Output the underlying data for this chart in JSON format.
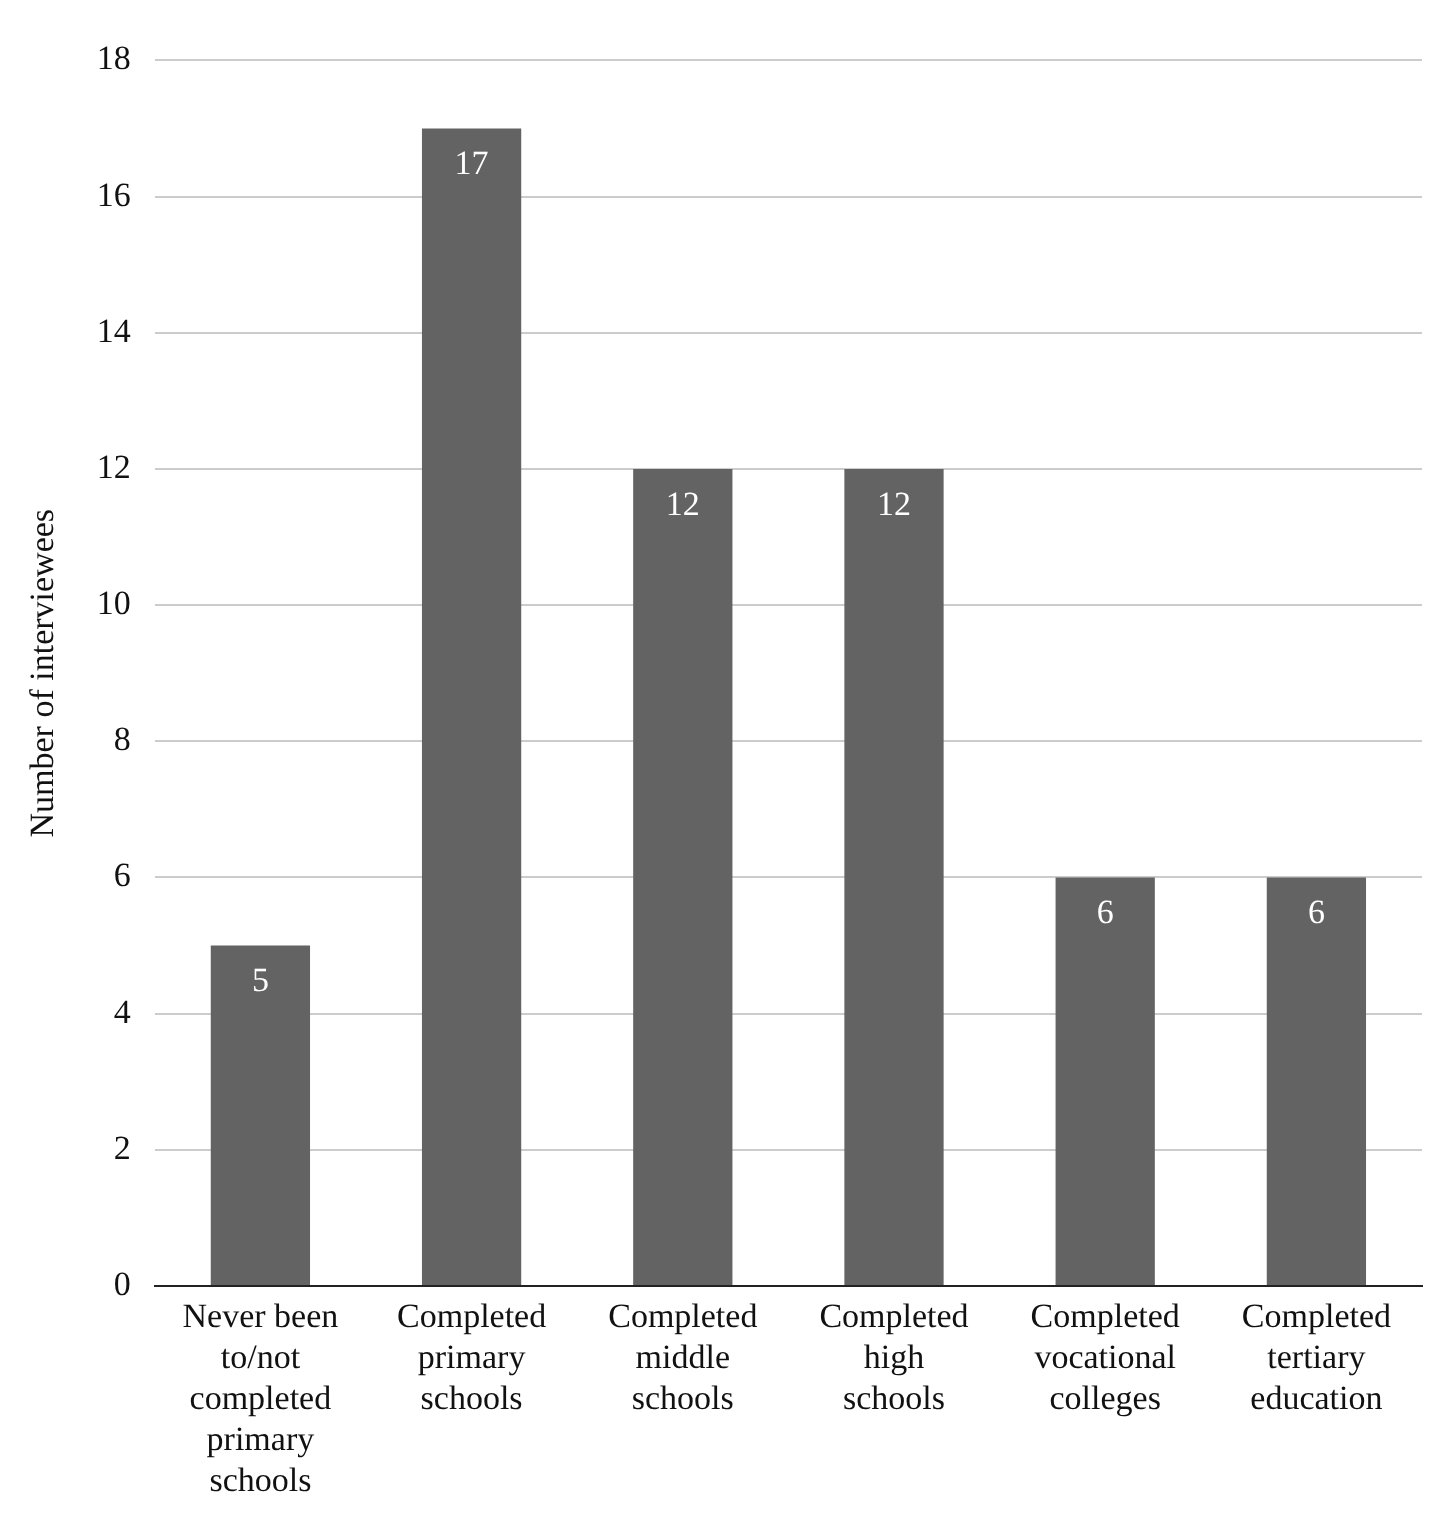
{
  "chart_data": {
    "type": "bar",
    "ylabel": "Number of interviewees",
    "categories": [
      "Never been to/not completed primary schools",
      "Completed primary schools",
      "Completed middle schools",
      "Completed high schools",
      "Completed vocational colleges",
      "Completed tertiary education"
    ],
    "values": [
      5,
      17,
      12,
      12,
      6,
      6
    ],
    "color": "#636363",
    "ylim": [
      0,
      18
    ],
    "yticks": [
      0,
      2,
      4,
      6,
      8,
      10,
      12,
      14,
      16,
      18
    ],
    "grid": "y",
    "data_labels": true,
    "legend": false
  }
}
